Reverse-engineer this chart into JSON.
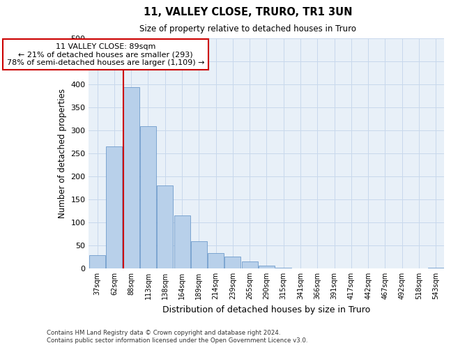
{
  "title": "11, VALLEY CLOSE, TRURO, TR1 3UN",
  "subtitle": "Size of property relative to detached houses in Truro",
  "xlabel": "Distribution of detached houses by size in Truro",
  "ylabel": "Number of detached properties",
  "footer_line1": "Contains HM Land Registry data © Crown copyright and database right 2024.",
  "footer_line2": "Contains public sector information licensed under the Open Government Licence v3.0.",
  "bar_color": "#b8d0ea",
  "bar_edge_color": "#5b8ec4",
  "annotation_box_color": "#cc0000",
  "vline_color": "#cc0000",
  "grid_color": "#c8d8ec",
  "bg_color": "#e8f0f8",
  "categories": [
    "37sqm",
    "62sqm",
    "88sqm",
    "113sqm",
    "138sqm",
    "164sqm",
    "189sqm",
    "214sqm",
    "239sqm",
    "265sqm",
    "290sqm",
    "315sqm",
    "341sqm",
    "366sqm",
    "391sqm",
    "417sqm",
    "442sqm",
    "467sqm",
    "492sqm",
    "518sqm",
    "543sqm"
  ],
  "values": [
    28,
    264,
    393,
    308,
    180,
    115,
    58,
    32,
    25,
    15,
    6,
    1,
    0,
    0,
    0,
    0,
    0,
    0,
    0,
    0,
    1
  ],
  "ylim": [
    0,
    500
  ],
  "yticks": [
    0,
    50,
    100,
    150,
    200,
    250,
    300,
    350,
    400,
    450,
    500
  ],
  "vline_bar_index": 2,
  "annotation_text_line1": "11 VALLEY CLOSE: 89sqm",
  "annotation_text_line2": "← 21% of detached houses are smaller (293)",
  "annotation_text_line3": "78% of semi-detached houses are larger (1,109) →"
}
